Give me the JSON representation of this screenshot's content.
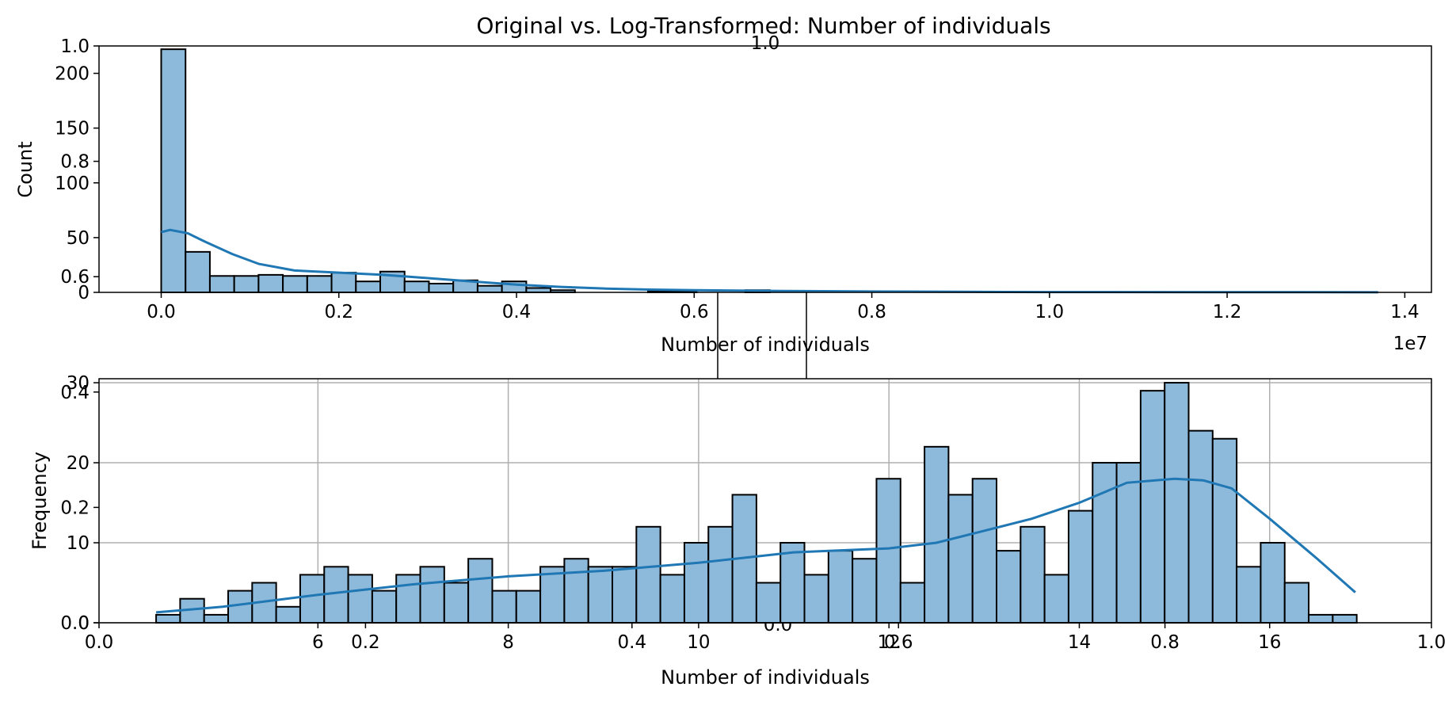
{
  "figure_title": "Original vs. Log-Transformed: Number of individuals",
  "colors": {
    "bar_fill": "#8db9da",
    "bar_edge": "#000000",
    "kde_line": "#1f77b4",
    "grid": "#b0b0b0"
  },
  "chart_data": [
    {
      "type": "bar",
      "panel": "original",
      "kind": "histogram with KDE",
      "xlabel": "Number of individuals",
      "ylabel": "Count",
      "x_offset_text": "1e7",
      "xlim": [
        -0.07,
        1.43
      ],
      "ylim": [
        0,
        225
      ],
      "grid": false,
      "x_ticks": [
        {
          "value": 0.0,
          "label": "0.0"
        },
        {
          "value": 0.2,
          "label": "0.2"
        },
        {
          "value": 0.4,
          "label": "0.4"
        },
        {
          "value": 0.6,
          "label": "0.6"
        },
        {
          "value": 0.8,
          "label": "0.8"
        },
        {
          "value": 1.0,
          "label": "1.0"
        },
        {
          "value": 1.2,
          "label": "1.2"
        },
        {
          "value": 1.4,
          "label": "1.4"
        }
      ],
      "y_ticks": [
        {
          "value": 0,
          "label": "0"
        },
        {
          "value": 50,
          "label": "50"
        },
        {
          "value": 100,
          "label": "100"
        },
        {
          "value": 150,
          "label": "150"
        },
        {
          "value": 200,
          "label": "200"
        }
      ],
      "bin_start": 0.0,
      "bin_width": 0.0274,
      "counts": [
        222,
        37,
        15,
        15,
        16,
        15,
        15,
        18,
        10,
        19,
        10,
        8,
        11,
        6,
        10,
        4,
        2,
        0,
        0,
        0,
        1,
        1,
        0,
        0,
        2,
        0,
        0,
        0,
        0,
        0,
        0,
        0,
        0,
        0,
        0,
        0,
        0,
        0,
        0,
        0,
        0,
        0,
        0,
        0,
        0,
        0,
        0,
        0,
        0,
        0
      ],
      "kde": {
        "x": [
          0.0,
          0.01,
          0.03,
          0.05,
          0.08,
          0.11,
          0.15,
          0.2,
          0.25,
          0.3,
          0.35,
          0.4,
          0.45,
          0.5,
          0.55,
          0.6,
          0.7,
          0.8,
          0.9,
          1.0,
          1.2,
          1.37
        ],
        "y": [
          55,
          57,
          54,
          46,
          35,
          26,
          20,
          18,
          16,
          13,
          10,
          7,
          5,
          3.5,
          2.5,
          2.0,
          1.3,
          0.8,
          0.5,
          0.3,
          0.2,
          0.1
        ]
      }
    },
    {
      "type": "bar",
      "panel": "log-transformed",
      "kind": "histogram with KDE",
      "xlabel": "Number of individuals",
      "ylabel": "Frequency",
      "xlim": [
        3.7,
        17.7
      ],
      "ylim": [
        0,
        30.5
      ],
      "grid": true,
      "x_ticks": [
        {
          "value": 6,
          "label": "6"
        },
        {
          "value": 8,
          "label": "8"
        },
        {
          "value": 10,
          "label": "10"
        },
        {
          "value": 12,
          "label": "12"
        },
        {
          "value": 14,
          "label": "14"
        },
        {
          "value": 16,
          "label": "16"
        }
      ],
      "y_ticks": [
        {
          "value": 0,
          "label": "0"
        },
        {
          "value": 10,
          "label": "10"
        },
        {
          "value": 20,
          "label": "20"
        },
        {
          "value": 30,
          "label": "30"
        }
      ],
      "bin_start": 4.3,
      "bin_width": 0.2523,
      "counts": [
        1,
        3,
        1,
        4,
        5,
        2,
        6,
        7,
        6,
        4,
        6,
        7,
        5,
        8,
        4,
        4,
        7,
        8,
        7,
        7,
        12,
        6,
        10,
        12,
        16,
        5,
        10,
        6,
        9,
        8,
        18,
        5,
        22,
        16,
        18,
        9,
        12,
        6,
        14,
        20,
        20,
        29,
        30,
        24,
        23,
        7,
        10,
        5,
        1,
        1
      ],
      "kde": {
        "x": [
          4.3,
          5.0,
          6.0,
          7.0,
          8.0,
          9.0,
          10.0,
          11.0,
          12.0,
          12.5,
          13.0,
          13.5,
          14.0,
          14.5,
          15.0,
          15.3,
          15.6,
          16.0,
          16.5,
          16.9
        ],
        "y": [
          1.3,
          2.0,
          3.5,
          4.8,
          5.8,
          6.5,
          7.5,
          8.8,
          9.3,
          10.0,
          11.5,
          13.0,
          15.0,
          17.5,
          18.0,
          17.8,
          16.8,
          13.0,
          8.0,
          3.8
        ]
      }
    },
    {
      "type": "line",
      "panel": "empty-axes-top",
      "xlim": [
        0,
        1
      ],
      "ylim": [
        0,
        1
      ],
      "grid": false,
      "x_ticks": [
        {
          "value": 0.5,
          "label": "1.0"
        }
      ],
      "y_ticks": [
        {
          "value": 0.0,
          "label": "0.0"
        },
        {
          "value": 0.2,
          "label": "0.2"
        },
        {
          "value": 0.4,
          "label": "0.4"
        },
        {
          "value": 0.6,
          "label": "0.6"
        },
        {
          "value": 0.8,
          "label": "0.8"
        },
        {
          "value": 1.0,
          "label": "1.0"
        }
      ],
      "bottom_ticks": [
        {
          "value": 0.0,
          "label": "0.0"
        },
        {
          "value": 0.2,
          "label": "0.2"
        },
        {
          "value": 0.4,
          "label": "0.4"
        },
        {
          "value": 0.6,
          "label": "0.6"
        },
        {
          "value": 0.8,
          "label": "0.8"
        },
        {
          "value": 1.0,
          "label": "1.0"
        }
      ],
      "center_label": "0.0"
    }
  ]
}
